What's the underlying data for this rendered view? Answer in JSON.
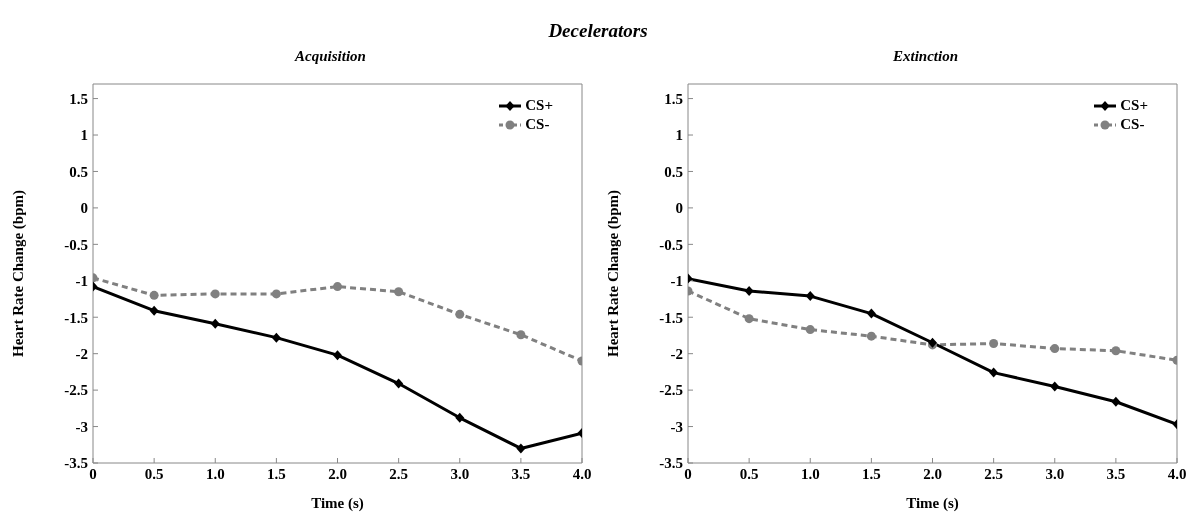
{
  "chart_data": [
    {
      "type": "line",
      "title": "Decelerators",
      "subtitle": "Acquisition",
      "xlabel": "Time (s)",
      "ylabel": "Heart Rate Change (bpm)",
      "x": [
        0,
        0.5,
        1,
        1.5,
        2,
        2.5,
        3,
        3.5,
        4
      ],
      "series": [
        {
          "name": "CS+",
          "color": "#000000",
          "marker": "diamond",
          "line_style": "solid",
          "values": [
            -1.08,
            -1.41,
            -1.59,
            -1.78,
            -2.02,
            -2.41,
            -2.88,
            -3.3,
            -3.09
          ]
        },
        {
          "name": "CS-",
          "color": "#808080",
          "marker": "circle",
          "line_style": "dashed",
          "values": [
            -0.96,
            -1.2,
            -1.18,
            -1.18,
            -1.08,
            -1.15,
            -1.46,
            -1.74,
            -2.1
          ]
        }
      ],
      "xlim": [
        0,
        4
      ],
      "xticks": [
        0,
        0.5,
        {
          "value": 1,
          "label": "1.0"
        },
        1.5,
        {
          "value": 2,
          "label": "2.0"
        },
        2.5,
        {
          "value": 3,
          "label": "3.0"
        },
        3.5,
        {
          "value": 4,
          "label": "4.0"
        }
      ],
      "ylim": [
        -3.5,
        1.7
      ],
      "yticks": [
        -3.5,
        -3,
        -2.5,
        -2,
        -1.5,
        -1,
        -0.5,
        0,
        0.5,
        1,
        1.5
      ],
      "grid": false,
      "legend": "top right"
    },
    {
      "type": "line",
      "subtitle": "Extinction",
      "xlabel": "Time (s)",
      "ylabel": "Heart Rate Change (bpm)",
      "x": [
        0,
        0.5,
        1,
        1.5,
        2,
        2.5,
        3,
        3.5,
        4
      ],
      "series": [
        {
          "name": "CS+",
          "color": "#000000",
          "marker": "diamond",
          "line_style": "solid",
          "values": [
            -0.97,
            -1.14,
            -1.21,
            -1.45,
            -1.85,
            -2.26,
            -2.45,
            -2.66,
            -2.97
          ]
        },
        {
          "name": "CS-",
          "color": "#808080",
          "marker": "circle",
          "line_style": "dashed",
          "values": [
            -1.14,
            -1.52,
            -1.67,
            -1.76,
            -1.88,
            -1.86,
            -1.93,
            -1.96,
            -2.09
          ]
        }
      ],
      "xlim": [
        0,
        4
      ],
      "xticks": [
        0,
        0.5,
        {
          "value": 1,
          "label": "1.0"
        },
        1.5,
        {
          "value": 2,
          "label": "2.0"
        },
        2.5,
        {
          "value": 3,
          "label": "3.0"
        },
        3.5,
        {
          "value": 4,
          "label": "4.0"
        }
      ],
      "ylim": [
        -3.5,
        1.7
      ],
      "yticks": [
        -3.5,
        -3,
        -2.5,
        -2,
        -1.5,
        -1,
        -0.5,
        0,
        0.5,
        1,
        1.5
      ],
      "grid": false,
      "legend": "top right"
    }
  ]
}
